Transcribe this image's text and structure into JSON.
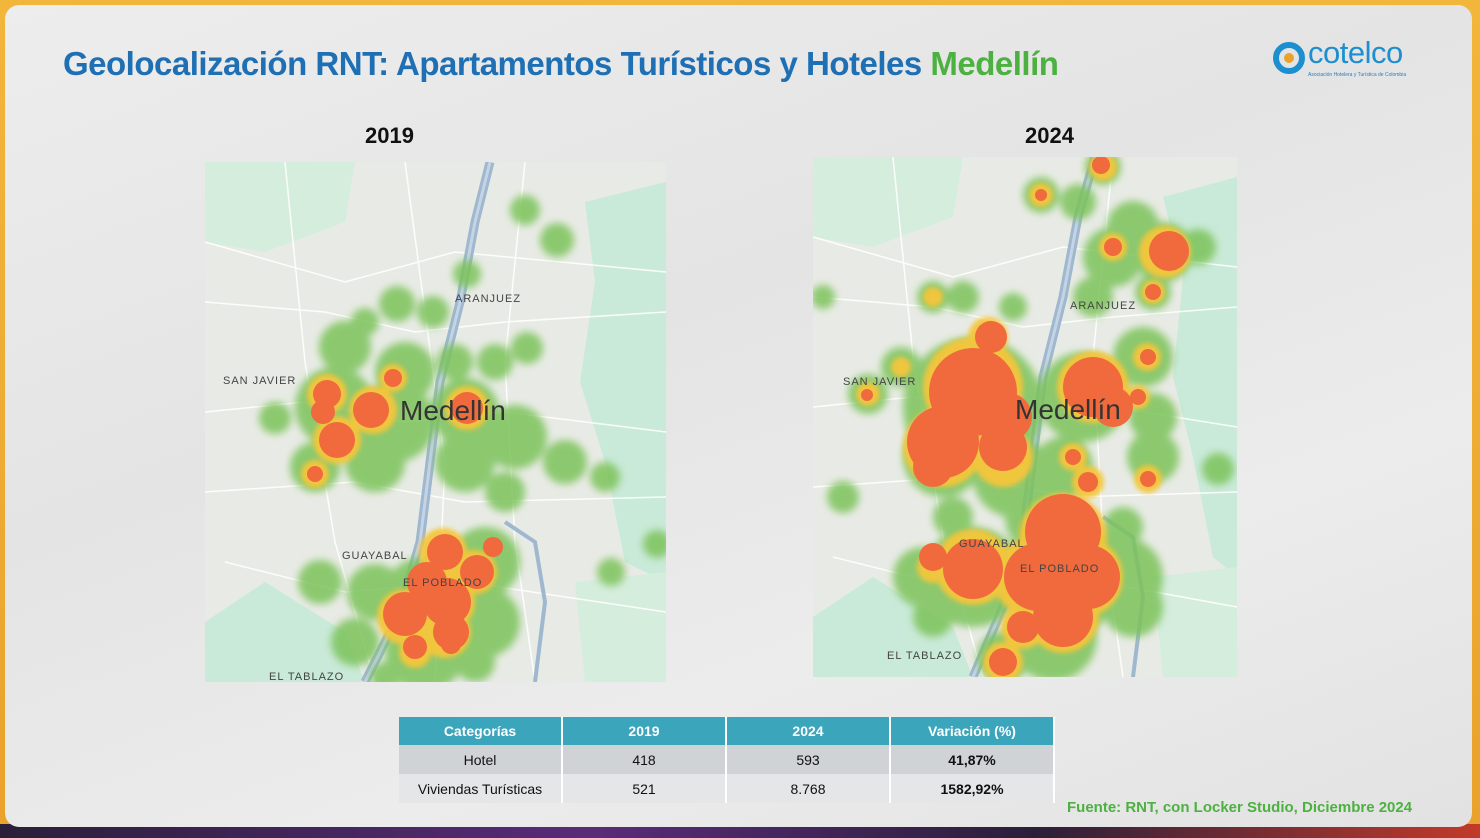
{
  "title": {
    "part1": "Geolocalización",
    "part2": "RNT: Apartamentos Turísticos y Hoteles",
    "part3": "Medellín"
  },
  "logo": {
    "name": "cotelco",
    "tagline": "Asociación Hotelera y Turística de Colombia"
  },
  "maps": [
    {
      "year": "2019",
      "city_label": "Medellín",
      "places": [
        "ARANJUEZ",
        "SAN JAVIER",
        "GUAYABAL",
        "EL POBLADO",
        "EL TABLAZO"
      ]
    },
    {
      "year": "2024",
      "city_label": "Medellín",
      "places": [
        "ARANJUEZ",
        "SAN JAVIER",
        "GUAYABAL",
        "EL POBLADO",
        "EL TABLAZO"
      ]
    }
  ],
  "table": {
    "headers": [
      "Categorías",
      "2019",
      "2024",
      "Variación (%)"
    ],
    "rows": [
      [
        "Hotel",
        "418",
        "593",
        "41,87%"
      ],
      [
        "Viviendas Turísticas",
        "521",
        "8.768",
        "1582,92%"
      ]
    ]
  },
  "source": "Fuente: RNT, con Locker Studio, Diciembre 2024",
  "colors": {
    "title_blue": "#1e6fb3",
    "title_green": "#4cb140",
    "table_header": "#3aa5bb",
    "heat_low": "#7cc35a",
    "heat_mid": "#f5c63a",
    "heat_high": "#f06a3e",
    "frame": "#f2b63a"
  }
}
